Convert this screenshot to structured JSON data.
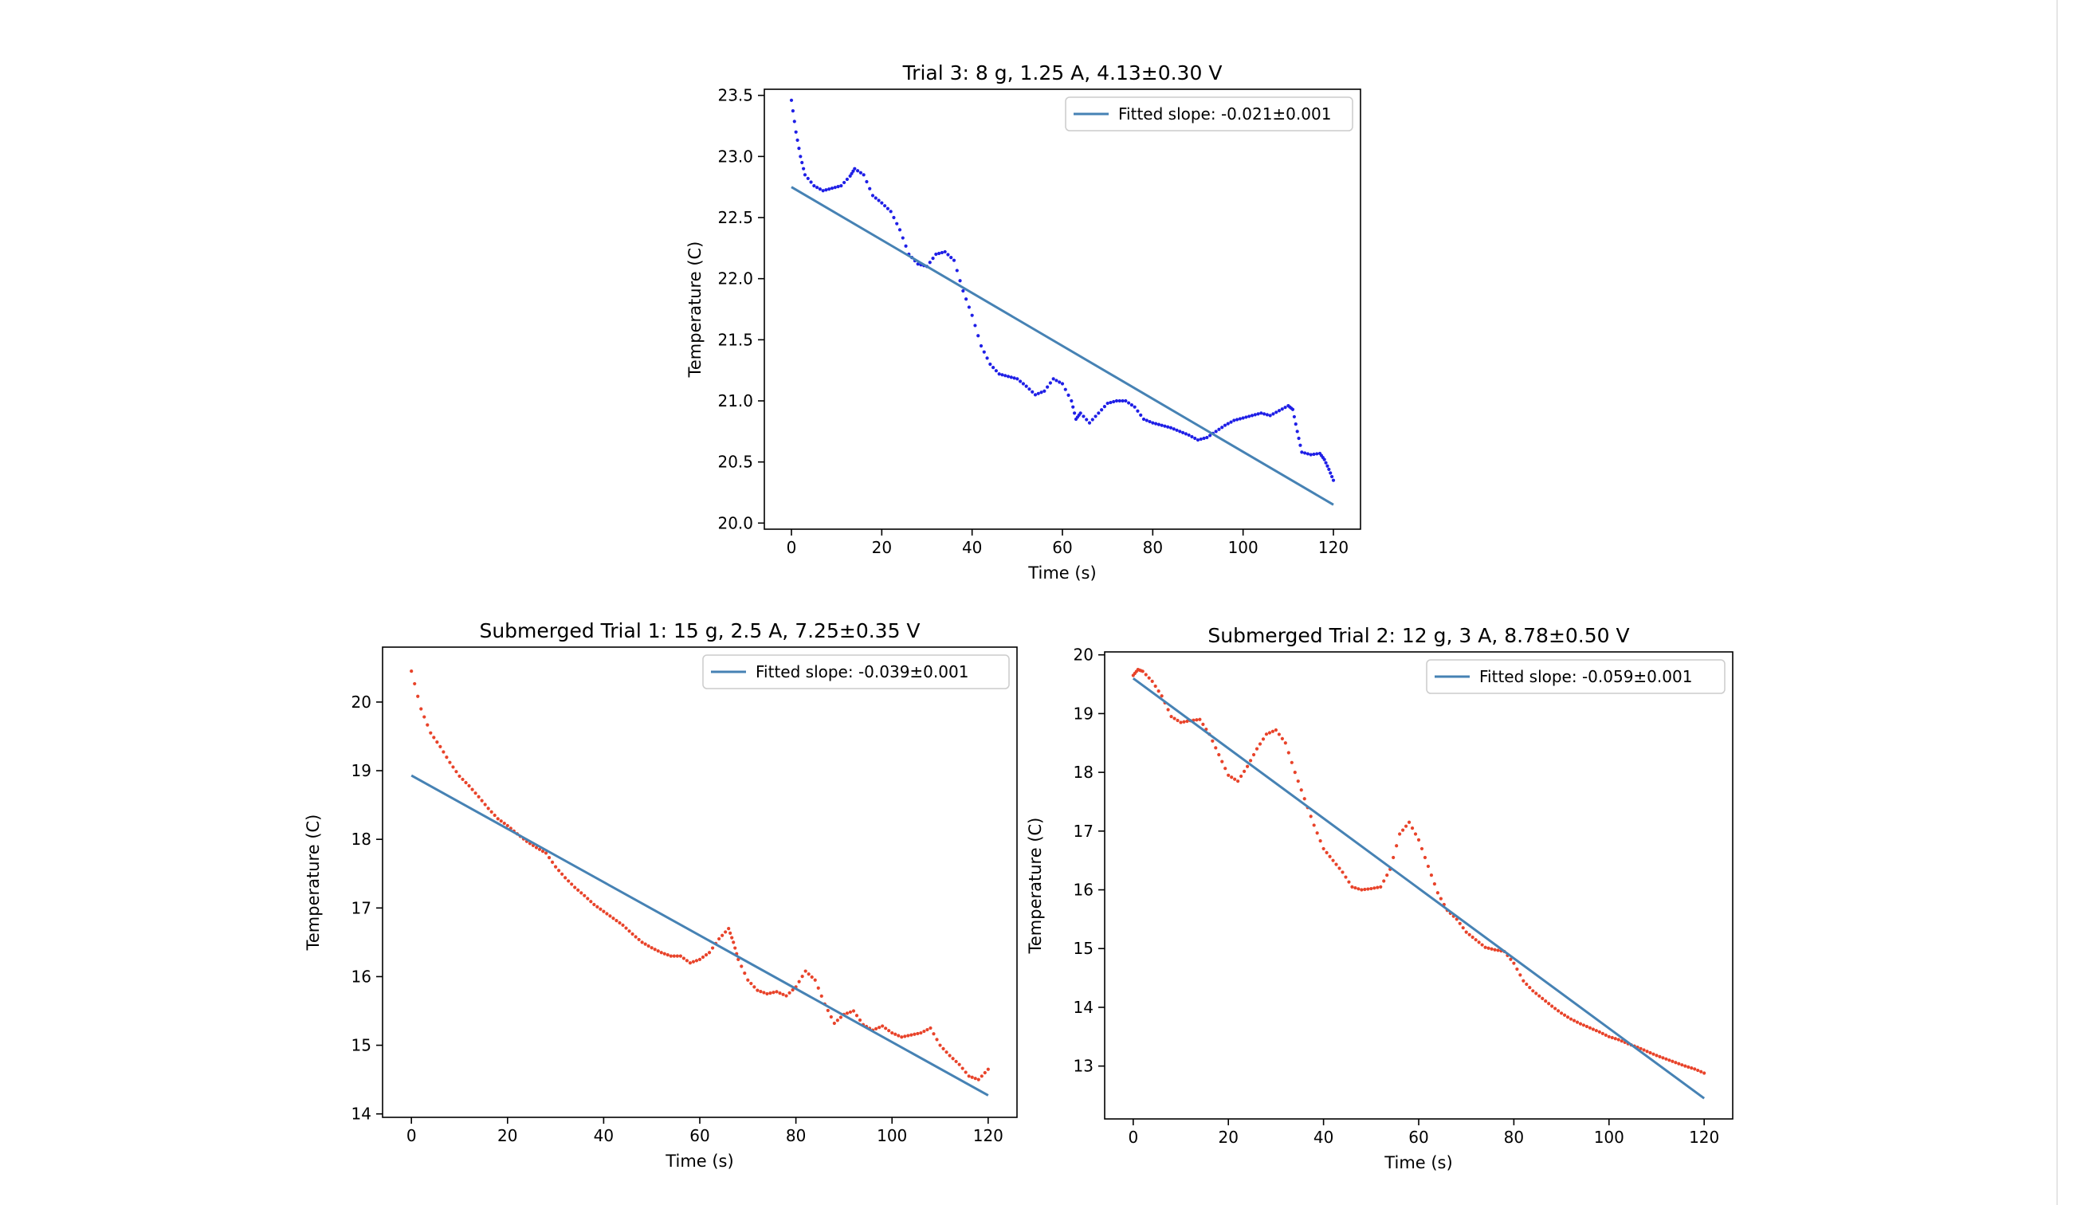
{
  "chart_data": [
    {
      "type": "scatter",
      "title": "Trial 3: 8 g, 1.25 A, 4.13±0.30 V",
      "xlabel": "Time (s)",
      "ylabel": "Temperature (C)",
      "xlim": [
        -6,
        126
      ],
      "ylim": [
        19.95,
        23.55
      ],
      "xticks": [
        0,
        20,
        40,
        60,
        80,
        100,
        120
      ],
      "yticks": [
        20.0,
        20.5,
        21.0,
        21.5,
        22.0,
        22.5,
        23.0,
        23.5
      ],
      "ytick_decimals": 1,
      "legend": "upper right",
      "marker_color": "#1f1fe6",
      "fit_color": "#4682b4",
      "series": [
        {
          "kind": "points",
          "points": [
            [
              0,
              23.46
            ],
            [
              1,
              23.2
            ],
            [
              2,
              23.0
            ],
            [
              3,
              22.85
            ],
            [
              5,
              22.76
            ],
            [
              7,
              22.72
            ],
            [
              9,
              22.74
            ],
            [
              11,
              22.76
            ],
            [
              13,
              22.84
            ],
            [
              14,
              22.9
            ],
            [
              16,
              22.85
            ],
            [
              18,
              22.68
            ],
            [
              20,
              22.62
            ],
            [
              22,
              22.55
            ],
            [
              24,
              22.4
            ],
            [
              26,
              22.2
            ],
            [
              28,
              22.12
            ],
            [
              30,
              22.1
            ],
            [
              32,
              22.2
            ],
            [
              34,
              22.22
            ],
            [
              36,
              22.15
            ],
            [
              38,
              21.9
            ],
            [
              40,
              21.7
            ],
            [
              42,
              21.45
            ],
            [
              44,
              21.3
            ],
            [
              46,
              21.22
            ],
            [
              48,
              21.2
            ],
            [
              50,
              21.18
            ],
            [
              52,
              21.12
            ],
            [
              54,
              21.05
            ],
            [
              56,
              21.08
            ],
            [
              58,
              21.18
            ],
            [
              60,
              21.14
            ],
            [
              62,
              21.0
            ],
            [
              63,
              20.85
            ],
            [
              64,
              20.9
            ],
            [
              66,
              20.82
            ],
            [
              68,
              20.9
            ],
            [
              70,
              20.98
            ],
            [
              72,
              21.0
            ],
            [
              74,
              21.0
            ],
            [
              76,
              20.95
            ],
            [
              78,
              20.85
            ],
            [
              80,
              20.82
            ],
            [
              82,
              20.8
            ],
            [
              84,
              20.78
            ],
            [
              86,
              20.75
            ],
            [
              88,
              20.72
            ],
            [
              90,
              20.68
            ],
            [
              92,
              20.7
            ],
            [
              94,
              20.75
            ],
            [
              96,
              20.8
            ],
            [
              98,
              20.84
            ],
            [
              100,
              20.86
            ],
            [
              102,
              20.88
            ],
            [
              104,
              20.9
            ],
            [
              106,
              20.88
            ],
            [
              108,
              20.92
            ],
            [
              110,
              20.96
            ],
            [
              111,
              20.93
            ],
            [
              112,
              20.75
            ],
            [
              113,
              20.58
            ],
            [
              115,
              20.56
            ],
            [
              117,
              20.57
            ],
            [
              118,
              20.52
            ],
            [
              119,
              20.44
            ],
            [
              120,
              20.35
            ]
          ]
        },
        {
          "kind": "fit",
          "name": "Fitted slope: -0.021±0.001",
          "points": [
            [
              0,
              22.75
            ],
            [
              120,
              20.15
            ]
          ]
        }
      ]
    },
    {
      "type": "scatter",
      "title": "Submerged Trial 1: 15 g, 2.5 A, 7.25±0.35 V",
      "xlabel": "Time (s)",
      "ylabel": "Temperature (C)",
      "xlim": [
        -6,
        126
      ],
      "ylim": [
        13.95,
        20.8
      ],
      "xticks": [
        0,
        20,
        40,
        60,
        80,
        100,
        120
      ],
      "yticks": [
        14,
        15,
        16,
        17,
        18,
        19,
        20
      ],
      "ytick_decimals": 0,
      "legend": "upper right",
      "marker_color": "#e8432a",
      "fit_color": "#4682b4",
      "series": [
        {
          "kind": "points",
          "points": [
            [
              0,
              20.45
            ],
            [
              2,
              19.9
            ],
            [
              4,
              19.55
            ],
            [
              6,
              19.35
            ],
            [
              8,
              19.12
            ],
            [
              10,
              18.92
            ],
            [
              12,
              18.78
            ],
            [
              14,
              18.62
            ],
            [
              16,
              18.45
            ],
            [
              18,
              18.3
            ],
            [
              20,
              18.2
            ],
            [
              22,
              18.08
            ],
            [
              24,
              17.97
            ],
            [
              26,
              17.88
            ],
            [
              28,
              17.8
            ],
            [
              30,
              17.6
            ],
            [
              32,
              17.44
            ],
            [
              34,
              17.3
            ],
            [
              36,
              17.18
            ],
            [
              38,
              17.05
            ],
            [
              40,
              16.95
            ],
            [
              42,
              16.85
            ],
            [
              44,
              16.75
            ],
            [
              46,
              16.62
            ],
            [
              48,
              16.5
            ],
            [
              50,
              16.42
            ],
            [
              52,
              16.35
            ],
            [
              54,
              16.3
            ],
            [
              56,
              16.3
            ],
            [
              58,
              16.2
            ],
            [
              60,
              16.25
            ],
            [
              62,
              16.35
            ],
            [
              64,
              16.55
            ],
            [
              66,
              16.7
            ],
            [
              67,
              16.5
            ],
            [
              68,
              16.25
            ],
            [
              70,
              15.95
            ],
            [
              72,
              15.8
            ],
            [
              74,
              15.75
            ],
            [
              76,
              15.78
            ],
            [
              78,
              15.72
            ],
            [
              80,
              15.85
            ],
            [
              82,
              16.08
            ],
            [
              84,
              15.95
            ],
            [
              86,
              15.6
            ],
            [
              88,
              15.32
            ],
            [
              90,
              15.45
            ],
            [
              92,
              15.5
            ],
            [
              94,
              15.3
            ],
            [
              96,
              15.22
            ],
            [
              98,
              15.28
            ],
            [
              100,
              15.18
            ],
            [
              102,
              15.12
            ],
            [
              104,
              15.15
            ],
            [
              106,
              15.18
            ],
            [
              108,
              15.25
            ],
            [
              110,
              15.0
            ],
            [
              112,
              14.85
            ],
            [
              114,
              14.72
            ],
            [
              116,
              14.55
            ],
            [
              118,
              14.5
            ],
            [
              120,
              14.65
            ]
          ]
        },
        {
          "kind": "fit",
          "name": "Fitted slope: -0.039±0.001",
          "points": [
            [
              0,
              18.93
            ],
            [
              120,
              14.27
            ]
          ]
        }
      ]
    },
    {
      "type": "scatter",
      "title": "Submerged Trial 2: 12 g, 3 A, 8.78±0.50 V",
      "xlabel": "Time (s)",
      "ylabel": "Temperature (C)",
      "xlim": [
        -6,
        126
      ],
      "ylim": [
        12.1,
        20.05
      ],
      "xticks": [
        0,
        20,
        40,
        60,
        80,
        100,
        120
      ],
      "yticks": [
        13,
        14,
        15,
        16,
        17,
        18,
        19,
        20
      ],
      "ytick_decimals": 0,
      "legend": "upper right",
      "marker_color": "#e8432a",
      "fit_color": "#4682b4",
      "series": [
        {
          "kind": "points",
          "points": [
            [
              0,
              19.65
            ],
            [
              1,
              19.75
            ],
            [
              2,
              19.72
            ],
            [
              4,
              19.55
            ],
            [
              6,
              19.3
            ],
            [
              8,
              18.95
            ],
            [
              10,
              18.85
            ],
            [
              12,
              18.88
            ],
            [
              14,
              18.9
            ],
            [
              16,
              18.65
            ],
            [
              18,
              18.3
            ],
            [
              20,
              17.95
            ],
            [
              22,
              17.85
            ],
            [
              24,
              18.1
            ],
            [
              26,
              18.4
            ],
            [
              28,
              18.65
            ],
            [
              30,
              18.72
            ],
            [
              32,
              18.5
            ],
            [
              34,
              18.0
            ],
            [
              36,
              17.55
            ],
            [
              38,
              17.1
            ],
            [
              40,
              16.7
            ],
            [
              42,
              16.5
            ],
            [
              44,
              16.3
            ],
            [
              46,
              16.05
            ],
            [
              48,
              16.0
            ],
            [
              50,
              16.02
            ],
            [
              52,
              16.05
            ],
            [
              54,
              16.35
            ],
            [
              56,
              16.95
            ],
            [
              58,
              17.15
            ],
            [
              60,
              16.85
            ],
            [
              62,
              16.4
            ],
            [
              64,
              15.95
            ],
            [
              66,
              15.65
            ],
            [
              68,
              15.5
            ],
            [
              70,
              15.28
            ],
            [
              72,
              15.15
            ],
            [
              74,
              15.02
            ],
            [
              76,
              14.98
            ],
            [
              78,
              14.95
            ],
            [
              80,
              14.75
            ],
            [
              82,
              14.45
            ],
            [
              84,
              14.28
            ],
            [
              86,
              14.15
            ],
            [
              88,
              14.02
            ],
            [
              90,
              13.9
            ],
            [
              92,
              13.8
            ],
            [
              94,
              13.72
            ],
            [
              96,
              13.65
            ],
            [
              98,
              13.58
            ],
            [
              100,
              13.5
            ],
            [
              102,
              13.45
            ],
            [
              104,
              13.38
            ],
            [
              106,
              13.32
            ],
            [
              108,
              13.25
            ],
            [
              110,
              13.18
            ],
            [
              112,
              13.12
            ],
            [
              114,
              13.06
            ],
            [
              116,
              13.0
            ],
            [
              118,
              12.95
            ],
            [
              120,
              12.88
            ]
          ]
        },
        {
          "kind": "fit",
          "name": "Fitted slope: -0.059±0.001",
          "points": [
            [
              0,
              19.6
            ],
            [
              120,
              12.45
            ]
          ]
        }
      ]
    }
  ]
}
